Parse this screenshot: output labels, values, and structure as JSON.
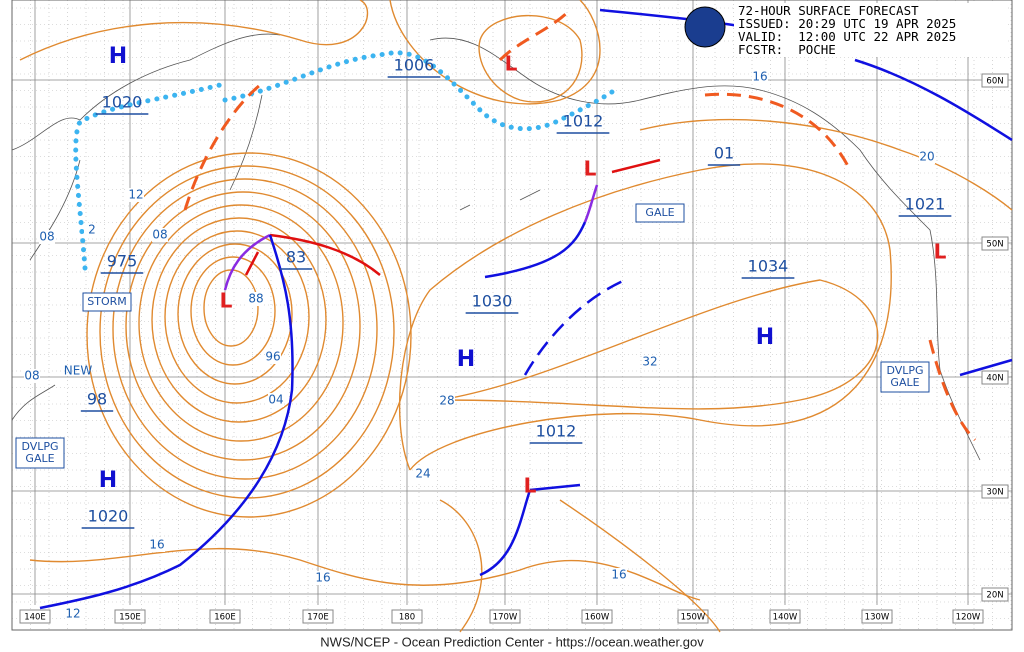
{
  "header": {
    "lines": [
      "72-HOUR SURFACE FORECAST",
      "ISSUED: 20:29 UTC 19 APR 2025",
      "VALID:  12:00 UTC 22 APR 2025",
      "FCSTR:  POCHE"
    ]
  },
  "footer": "NWS/NCEP - Ocean Prediction Center - https://ocean.weather.gov",
  "longitude_labels": [
    "140E",
    "150E",
    "160E",
    "170E",
    "180",
    "170W",
    "160W",
    "150W",
    "140W",
    "130W",
    "120W"
  ],
  "latitude_labels": [
    "60N",
    "50N",
    "40N",
    "30N",
    "20N"
  ],
  "high_centers": [
    "H",
    "H",
    "H",
    "H"
  ],
  "low_centers": [
    "L",
    "L",
    "L",
    "L",
    "L"
  ],
  "pressure_labels": [
    "1020",
    "975",
    "98",
    "1020",
    "1006",
    "1012",
    "01",
    "83",
    "1030",
    "1012",
    "1034",
    "1021"
  ],
  "isobar_labels": [
    "12",
    "08",
    "08",
    "2",
    "88",
    "96",
    "04",
    "28",
    "24",
    "32",
    "16",
    "16",
    "16",
    "12",
    "16",
    "20",
    "08"
  ],
  "annotations": [
    "NEW"
  ],
  "boxes": [
    [
      "STORM"
    ],
    [
      "GALE"
    ],
    [
      "DVLPG",
      "GALE"
    ],
    [
      "DVLPG",
      "GALE"
    ]
  ]
}
